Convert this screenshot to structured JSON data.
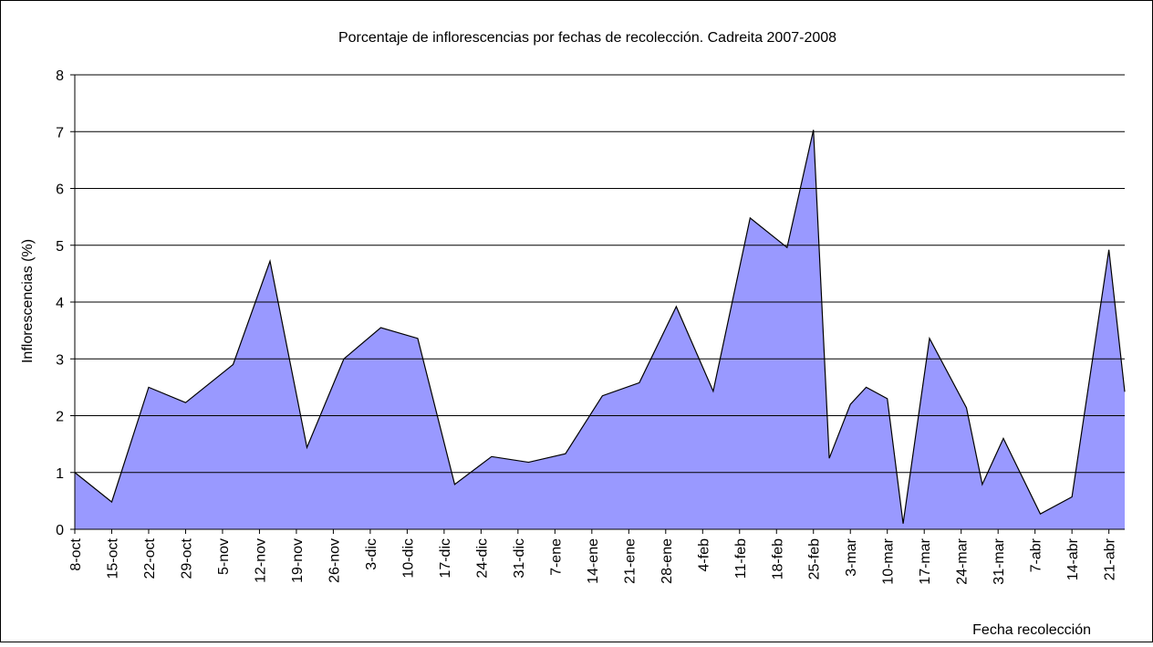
{
  "chart_data": {
    "type": "area",
    "title": "Porcentaje de inflorescencias por fechas de recolección. Cadreita 2007-2008",
    "x_label": "Fecha recolección",
    "y_label": "Inflorescencias (%)",
    "x": [
      0,
      7,
      14,
      21,
      30,
      37,
      44,
      51,
      58,
      65,
      72,
      79,
      86,
      93,
      100,
      107,
      114,
      121,
      128,
      135,
      140,
      143,
      147,
      150,
      154,
      157,
      162,
      169,
      172,
      176,
      183,
      189,
      196,
      199
    ],
    "values": [
      1.0,
      0.48,
      2.5,
      2.23,
      2.9,
      4.72,
      1.44,
      3.0,
      3.55,
      3.36,
      0.79,
      1.28,
      1.18,
      1.33,
      2.35,
      2.58,
      3.92,
      2.43,
      5.48,
      4.96,
      7.03,
      1.25,
      2.2,
      2.5,
      2.3,
      0.1,
      3.36,
      2.14,
      0.79,
      1.6,
      0.27,
      0.57,
      4.92,
      2.42
    ],
    "color": "#9999ff",
    "xlim": [
      0,
      199
    ],
    "xticks": [
      {
        "value": 0,
        "label": "8-oct"
      },
      {
        "value": 7,
        "label": "15-oct"
      },
      {
        "value": 14,
        "label": "22-oct"
      },
      {
        "value": 21,
        "label": "29-oct"
      },
      {
        "value": 28,
        "label": "5-nov"
      },
      {
        "value": 35,
        "label": "12-nov"
      },
      {
        "value": 42,
        "label": "19-nov"
      },
      {
        "value": 49,
        "label": "26-nov"
      },
      {
        "value": 56,
        "label": "3-dic"
      },
      {
        "value": 63,
        "label": "10-dic"
      },
      {
        "value": 70,
        "label": "17-dic"
      },
      {
        "value": 77,
        "label": "24-dic"
      },
      {
        "value": 84,
        "label": "31-dic"
      },
      {
        "value": 91,
        "label": "7-ene"
      },
      {
        "value": 98,
        "label": "14-ene"
      },
      {
        "value": 105,
        "label": "21-ene"
      },
      {
        "value": 112,
        "label": "28-ene"
      },
      {
        "value": 119,
        "label": "4-feb"
      },
      {
        "value": 126,
        "label": "11-feb"
      },
      {
        "value": 133,
        "label": "18-feb"
      },
      {
        "value": 140,
        "label": "25-feb"
      },
      {
        "value": 147,
        "label": "3-mar"
      },
      {
        "value": 154,
        "label": "10-mar"
      },
      {
        "value": 161,
        "label": "17-mar"
      },
      {
        "value": 168,
        "label": "24-mar"
      },
      {
        "value": 175,
        "label": "31-mar"
      },
      {
        "value": 182,
        "label": "7-abr"
      },
      {
        "value": 189,
        "label": "14-abr"
      },
      {
        "value": 196,
        "label": "21-abr"
      }
    ],
    "ylim": [
      0,
      8
    ],
    "yticks": [
      0,
      1,
      2,
      3,
      4,
      5,
      6,
      7,
      8
    ],
    "grid": true
  }
}
